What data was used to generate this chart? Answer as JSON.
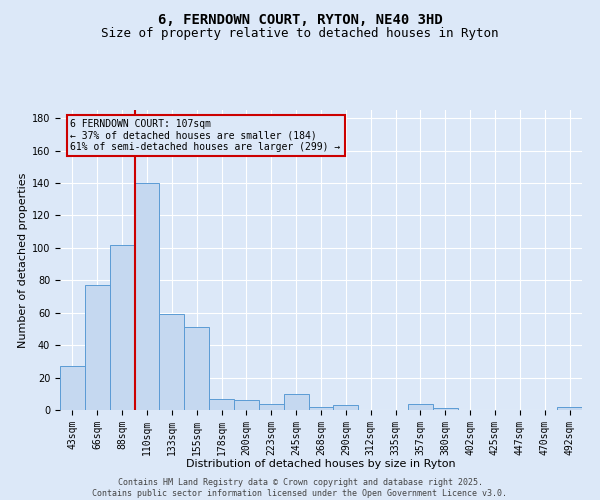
{
  "title": "6, FERNDOWN COURT, RYTON, NE40 3HD",
  "subtitle": "Size of property relative to detached houses in Ryton",
  "xlabel": "Distribution of detached houses by size in Ryton",
  "ylabel": "Number of detached properties",
  "categories": [
    "43sqm",
    "66sqm",
    "88sqm",
    "110sqm",
    "133sqm",
    "155sqm",
    "178sqm",
    "200sqm",
    "223sqm",
    "245sqm",
    "268sqm",
    "290sqm",
    "312sqm",
    "335sqm",
    "357sqm",
    "380sqm",
    "402sqm",
    "425sqm",
    "447sqm",
    "470sqm",
    "492sqm"
  ],
  "values": [
    27,
    77,
    102,
    140,
    59,
    51,
    7,
    6,
    4,
    10,
    2,
    3,
    0,
    0,
    4,
    1,
    0,
    0,
    0,
    0,
    2
  ],
  "bar_color": "#c5d8f0",
  "bar_edge_color": "#5b9bd5",
  "vline_color": "#cc0000",
  "vline_index": 3,
  "annotation_box_text": "6 FERNDOWN COURT: 107sqm\n← 37% of detached houses are smaller (184)\n61% of semi-detached houses are larger (299) →",
  "annotation_box_color": "#cc0000",
  "ylim": [
    0,
    185
  ],
  "yticks": [
    0,
    20,
    40,
    60,
    80,
    100,
    120,
    140,
    160,
    180
  ],
  "background_color": "#dce8f8",
  "grid_color": "#ffffff",
  "footer": "Contains HM Land Registry data © Crown copyright and database right 2025.\nContains public sector information licensed under the Open Government Licence v3.0.",
  "title_fontsize": 10,
  "subtitle_fontsize": 9,
  "xlabel_fontsize": 8,
  "ylabel_fontsize": 8,
  "tick_fontsize": 7,
  "annotation_fontsize": 7,
  "footer_fontsize": 6
}
